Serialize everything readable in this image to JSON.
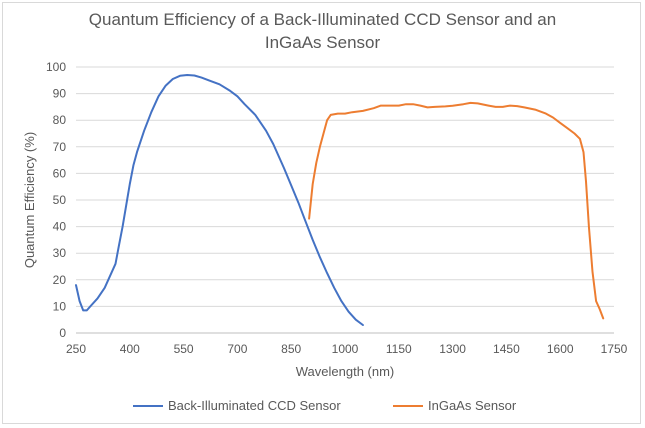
{
  "chart_data": {
    "type": "line",
    "title_line1": "Quantum Efficiency of a Back-Illuminated CCD Sensor and an",
    "title_line2": "InGaAs Sensor",
    "xlabel": "Wavelength (nm)",
    "ylabel": "Quantum Efficiency (%)",
    "xlim": [
      250,
      1750
    ],
    "ylim": [
      0,
      100
    ],
    "xticks": [
      250,
      400,
      550,
      700,
      850,
      1000,
      1150,
      1300,
      1450,
      1600,
      1750
    ],
    "yticks": [
      0,
      10,
      20,
      30,
      40,
      50,
      60,
      70,
      80,
      90,
      100
    ],
    "grid": "horizontal",
    "legend": "bottom",
    "series": [
      {
        "name": "Back-Illuminated CCD Sensor",
        "color": "#4472c4",
        "points": [
          [
            250,
            18
          ],
          [
            260,
            12
          ],
          [
            270,
            8.5
          ],
          [
            280,
            8.5
          ],
          [
            290,
            10
          ],
          [
            310,
            13
          ],
          [
            330,
            17
          ],
          [
            350,
            23
          ],
          [
            360,
            26
          ],
          [
            370,
            33
          ],
          [
            380,
            40
          ],
          [
            390,
            48
          ],
          [
            400,
            56
          ],
          [
            410,
            63
          ],
          [
            420,
            68
          ],
          [
            440,
            76
          ],
          [
            460,
            83
          ],
          [
            480,
            89
          ],
          [
            500,
            93
          ],
          [
            520,
            95.5
          ],
          [
            540,
            96.7
          ],
          [
            560,
            97
          ],
          [
            580,
            96.8
          ],
          [
            600,
            96
          ],
          [
            620,
            95
          ],
          [
            650,
            93.5
          ],
          [
            680,
            91
          ],
          [
            700,
            89
          ],
          [
            720,
            86
          ],
          [
            750,
            82
          ],
          [
            780,
            76
          ],
          [
            800,
            71
          ],
          [
            830,
            62
          ],
          [
            850,
            55.5
          ],
          [
            870,
            49
          ],
          [
            890,
            42
          ],
          [
            910,
            35
          ],
          [
            930,
            28.5
          ],
          [
            950,
            22.5
          ],
          [
            970,
            17
          ],
          [
            990,
            12
          ],
          [
            1010,
            8
          ],
          [
            1030,
            5
          ],
          [
            1050,
            3
          ]
        ]
      },
      {
        "name": "InGaAs Sensor",
        "color": "#ed7d31",
        "points": [
          [
            900,
            43
          ],
          [
            910,
            56
          ],
          [
            920,
            64
          ],
          [
            930,
            70
          ],
          [
            940,
            75
          ],
          [
            950,
            80
          ],
          [
            960,
            82
          ],
          [
            980,
            82.5
          ],
          [
            1000,
            82.5
          ],
          [
            1020,
            83
          ],
          [
            1050,
            83.5
          ],
          [
            1080,
            84.5
          ],
          [
            1100,
            85.5
          ],
          [
            1130,
            85.5
          ],
          [
            1150,
            85.5
          ],
          [
            1170,
            86
          ],
          [
            1190,
            86
          ],
          [
            1210,
            85.5
          ],
          [
            1230,
            84.8
          ],
          [
            1250,
            85
          ],
          [
            1280,
            85.2
          ],
          [
            1300,
            85.4
          ],
          [
            1330,
            86
          ],
          [
            1350,
            86.5
          ],
          [
            1370,
            86.3
          ],
          [
            1400,
            85.5
          ],
          [
            1420,
            85
          ],
          [
            1440,
            85
          ],
          [
            1460,
            85.5
          ],
          [
            1480,
            85.3
          ],
          [
            1500,
            84.8
          ],
          [
            1530,
            84
          ],
          [
            1560,
            82.5
          ],
          [
            1580,
            81
          ],
          [
            1600,
            79
          ],
          [
            1620,
            77
          ],
          [
            1640,
            75
          ],
          [
            1655,
            73
          ],
          [
            1665,
            68
          ],
          [
            1672,
            57
          ],
          [
            1680,
            40
          ],
          [
            1690,
            23
          ],
          [
            1700,
            12
          ],
          [
            1710,
            9
          ],
          [
            1720,
            5.5
          ]
        ]
      }
    ]
  }
}
